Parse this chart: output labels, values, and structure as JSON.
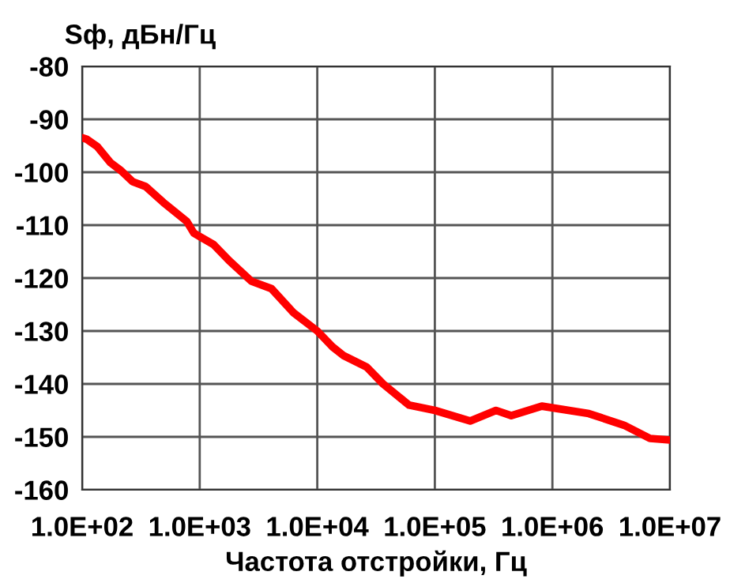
{
  "chart_data": {
    "type": "line",
    "xlabel": "Частота отстройки, Гц",
    "ylabel": "Sф, дБн/Гц",
    "log": "x",
    "grid": true,
    "legend": false,
    "marker": "none",
    "line_style": "solid",
    "x": [
      100,
      110,
      135,
      174,
      214,
      269,
      347,
      490,
      776,
      891,
      1318,
      1778,
      2754,
      4074,
      6310,
      10000,
      13490,
      16600,
      26300,
      36300,
      60260,
      100000,
      199500,
      331100,
      446700,
      812800,
      2042000,
      4074000,
      6761000,
      10000000
    ],
    "series": [
      {
        "color": "#ff0000",
        "values": [
          -93.5,
          -93.8,
          -95.2,
          -98.2,
          -99.7,
          -101.8,
          -102.7,
          -105.7,
          -109.3,
          -111.5,
          -113.7,
          -116.7,
          -120.6,
          -122,
          -126.6,
          -130,
          -133,
          -134.6,
          -136.8,
          -140,
          -144,
          -145,
          -147,
          -145,
          -146,
          -144.2,
          -145.6,
          -147.8,
          -150.3,
          -150.6
        ]
      }
    ],
    "xlim": [
      100,
      10000000
    ],
    "ylim": [
      -160,
      -80
    ],
    "xticks": [
      {
        "value": 100,
        "label": "1.0E+02"
      },
      {
        "value": 1000,
        "label": "1.0E+03"
      },
      {
        "value": 10000,
        "label": "1.0E+04"
      },
      {
        "value": 100000,
        "label": "1.0E+05"
      },
      {
        "value": 1000000,
        "label": "1.0E+06"
      },
      {
        "value": 10000000,
        "label": "1.0E+07"
      }
    ],
    "yticks": [
      -160,
      -150,
      -140,
      -130,
      -120,
      -110,
      -100,
      -90,
      -80
    ]
  }
}
